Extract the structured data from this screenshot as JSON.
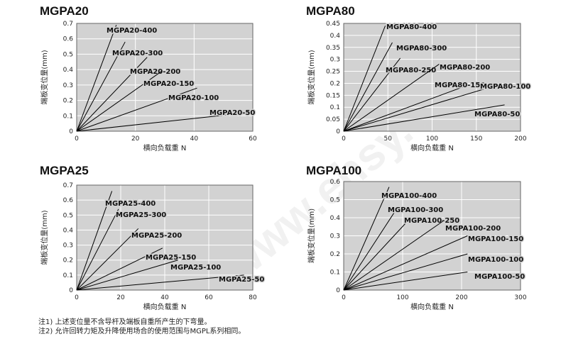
{
  "notes": [
    "注1) 上述变位量不含导杆及端板自重所产生的下弯量。",
    "注2) 允许回转力矩及升降使用场合的使用范围与MGPL系列相同。"
  ],
  "watermark": "www.ehsy.com",
  "colors": {
    "plot_bg": "#d2d2d2",
    "grid": "#ffffff",
    "line": "#000000",
    "frame": "#666666"
  },
  "chart_data": [
    {
      "type": "line",
      "title": "MGPA20",
      "xlabel": "横向负载重 N",
      "ylabel": "端板变位量(mm)",
      "xlim": [
        0,
        60
      ],
      "ylim": [
        0,
        0.7
      ],
      "xticks": [
        "0",
        "20",
        "40",
        "60"
      ],
      "yticks": [
        "0",
        "0.1",
        "0.2",
        "0.3",
        "0.4",
        "0.5",
        "0.6",
        "0.7"
      ],
      "series": [
        {
          "name": "MGPA20-400",
          "x": [
            0,
            13.5
          ],
          "y": [
            0,
            0.69
          ]
        },
        {
          "name": "MGPA20-300",
          "x": [
            0,
            16.5
          ],
          "y": [
            0,
            0.58
          ]
        },
        {
          "name": "MGPA20-200",
          "x": [
            0,
            24
          ],
          "y": [
            0,
            0.48
          ]
        },
        {
          "name": "MGPA20-150",
          "x": [
            0,
            29
          ],
          "y": [
            0,
            0.39
          ]
        },
        {
          "name": "MGPA20-100",
          "x": [
            0,
            41
          ],
          "y": [
            0,
            0.28
          ]
        },
        {
          "name": "MGPA20-50",
          "x": [
            0,
            58
          ],
          "y": [
            0,
            0.12
          ]
        }
      ]
    },
    {
      "type": "line",
      "title": "MGPA80",
      "xlabel": "横向负载重 N",
      "ylabel": "端板变位量(mm)",
      "xlim": [
        0,
        200
      ],
      "ylim": [
        0,
        0.45
      ],
      "xticks": [
        "0",
        "50",
        "100",
        "150",
        "200"
      ],
      "yticks": [
        "0",
        "0.05",
        "0.1",
        "0.15",
        "0.2",
        "0.25",
        "0.3",
        "0.35",
        "0.4",
        "0.45"
      ],
      "series": [
        {
          "name": "MGPA80-400",
          "x": [
            0,
            47
          ],
          "y": [
            0,
            0.44
          ]
        },
        {
          "name": "MGPA80-300",
          "x": [
            0,
            55
          ],
          "y": [
            0,
            0.37
          ]
        },
        {
          "name": "MGPA80-250",
          "x": [
            0,
            64
          ],
          "y": [
            0,
            0.305
          ]
        },
        {
          "name": "MGPA80-200",
          "x": [
            0,
            108
          ],
          "y": [
            0,
            0.28
          ]
        },
        {
          "name": "MGPA80-150",
          "x": [
            0,
            146
          ],
          "y": [
            0,
            0.2
          ]
        },
        {
          "name": "MGPA80-100",
          "x": [
            0,
            158
          ],
          "y": [
            0,
            0.175
          ]
        },
        {
          "name": "MGPA80-50",
          "x": [
            0,
            182
          ],
          "y": [
            0,
            0.11
          ]
        }
      ]
    },
    {
      "type": "line",
      "title": "MGPA25",
      "xlabel": "横向负载重 N",
      "ylabel": "端板变位量(mm)",
      "xlim": [
        0,
        80
      ],
      "ylim": [
        0,
        0.7
      ],
      "xticks": [
        "0",
        "20",
        "40",
        "60",
        "80"
      ],
      "yticks": [
        "0",
        "0.1",
        "0.2",
        "0.3",
        "0.4",
        "0.5",
        "0.6",
        "0.7"
      ],
      "series": [
        {
          "name": "MGPA25-400",
          "x": [
            0,
            16
          ],
          "y": [
            0,
            0.66
          ]
        },
        {
          "name": "MGPA25-300",
          "x": [
            0,
            19
          ],
          "y": [
            0,
            0.54
          ]
        },
        {
          "name": "MGPA25-200",
          "x": [
            0,
            28
          ],
          "y": [
            0,
            0.41
          ]
        },
        {
          "name": "MGPA25-150",
          "x": [
            0,
            39
          ],
          "y": [
            0,
            0.28
          ]
        },
        {
          "name": "MGPA25-100",
          "x": [
            0,
            46
          ],
          "y": [
            0,
            0.2
          ]
        },
        {
          "name": "MGPA25-50",
          "x": [
            0,
            76
          ],
          "y": [
            0,
            0.1
          ]
        }
      ]
    },
    {
      "type": "line",
      "title": "MGPA100",
      "xlabel": "横向负载重 N",
      "ylabel": "端板变位量(mm)",
      "xlim": [
        0,
        300
      ],
      "ylim": [
        0,
        0.6
      ],
      "xticks": [
        "0",
        "100",
        "200",
        "300"
      ],
      "yticks": [
        "0",
        "0.1",
        "0.2",
        "0.3",
        "0.4",
        "0.5",
        "0.6"
      ],
      "series": [
        {
          "name": "MGPA100-400",
          "x": [
            0,
            77
          ],
          "y": [
            0,
            0.57
          ]
        },
        {
          "name": "MGPA100-300",
          "x": [
            0,
            92
          ],
          "y": [
            0,
            0.46
          ]
        },
        {
          "name": "MGPA100-250",
          "x": [
            0,
            108
          ],
          "y": [
            0,
            0.38
          ]
        },
        {
          "name": "MGPA100-200",
          "x": [
            0,
            168
          ],
          "y": [
            0,
            0.38
          ]
        },
        {
          "name": "MGPA100-150",
          "x": [
            0,
            210
          ],
          "y": [
            0,
            0.3
          ]
        },
        {
          "name": "MGPA100-100",
          "x": [
            0,
            210
          ],
          "y": [
            0,
            0.2
          ]
        },
        {
          "name": "MGPA100-50",
          "x": [
            0,
            210
          ],
          "y": [
            0,
            0.1
          ]
        }
      ]
    }
  ]
}
